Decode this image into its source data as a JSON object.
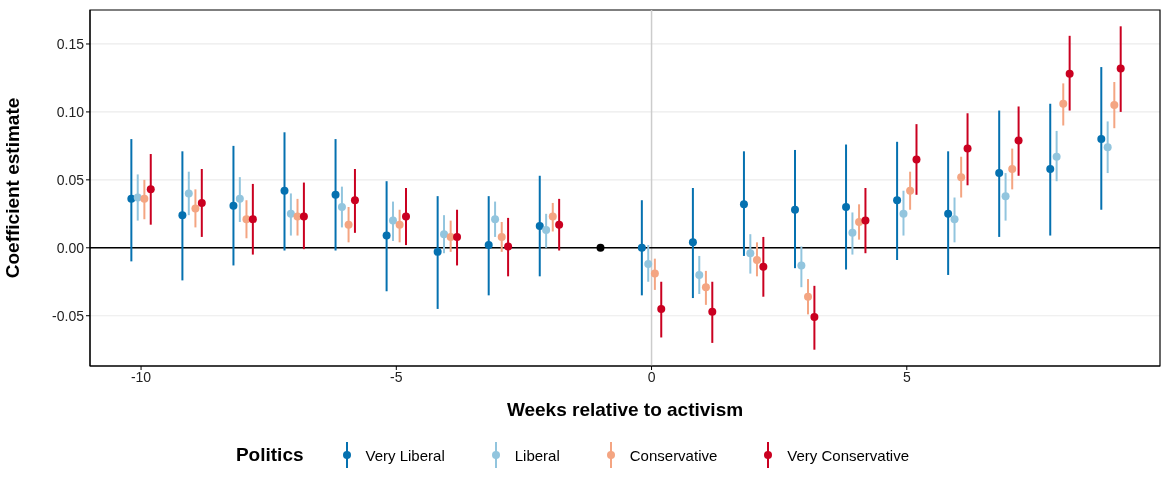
{
  "chart_data": {
    "type": "scatter",
    "xlabel": "Weeks relative to activism",
    "ylabel": "Coefficient estimate",
    "legend_title": "Politics",
    "legend": "bottom",
    "grid": "y",
    "marker": "circle",
    "xlim": [
      -11,
      9.96
    ],
    "xticks": [
      -10,
      -5,
      0,
      5
    ],
    "ylim": [
      -0.087,
      0.175
    ],
    "yticks": [
      {
        "value": -0.05,
        "label": "-0.05"
      },
      {
        "value": 0,
        "label": "0.00"
      },
      {
        "value": 0.05,
        "label": "0.05"
      },
      {
        "value": 0.1,
        "label": "0.10"
      },
      {
        "value": 0.15,
        "label": "0.15"
      }
    ],
    "ref_lines": [
      {
        "axis": "x",
        "value": 0,
        "color": "#cccccc"
      },
      {
        "axis": "y",
        "value": 0,
        "color": "#000000"
      }
    ],
    "series": [
      {
        "name": "Very Liberal",
        "color": "#0571b0",
        "x": [
          -10.19,
          -9.19,
          -8.19,
          -7.19,
          -6.19,
          -5.19,
          -4.19,
          -3.19,
          -2.19,
          -0.19,
          0.81,
          1.81,
          2.81,
          3.81,
          4.81,
          5.81,
          6.81,
          7.81,
          8.81
        ],
        "values": [
          0.036,
          0.024,
          0.031,
          0.042,
          0.039,
          0.009,
          -0.003,
          0.002,
          0.016,
          0.0,
          0.004,
          0.032,
          0.028,
          0.03,
          0.035,
          0.025,
          0.055,
          0.058,
          0.08
        ],
        "errors": [
          [
            -0.01,
            0.08
          ],
          [
            -0.024,
            0.071
          ],
          [
            -0.013,
            0.075
          ],
          [
            -0.002,
            0.085
          ],
          [
            -0.002,
            0.08
          ],
          [
            -0.032,
            0.049
          ],
          [
            -0.045,
            0.038
          ],
          [
            -0.035,
            0.038
          ],
          [
            -0.021,
            0.053
          ],
          [
            -0.035,
            0.035
          ],
          [
            -0.037,
            0.044
          ],
          [
            -0.006,
            0.071
          ],
          [
            -0.015,
            0.072
          ],
          [
            -0.016,
            0.076
          ],
          [
            -0.009,
            0.078
          ],
          [
            -0.02,
            0.071
          ],
          [
            0.008,
            0.101
          ],
          [
            0.009,
            0.106
          ],
          [
            0.028,
            0.133
          ]
        ]
      },
      {
        "name": "Liberal",
        "color": "#92c5de",
        "x": [
          -10.065,
          -9.065,
          -8.065,
          -7.065,
          -6.065,
          -5.065,
          -4.065,
          -3.065,
          -2.065,
          -0.065,
          0.935,
          1.935,
          2.935,
          3.935,
          4.935,
          5.935,
          6.935,
          7.935,
          8.935
        ],
        "values": [
          0.037,
          0.04,
          0.036,
          0.025,
          0.03,
          0.02,
          0.01,
          0.021,
          0.013,
          -0.012,
          -0.02,
          -0.004,
          -0.013,
          0.011,
          0.025,
          0.021,
          0.038,
          0.067,
          0.074
        ],
        "errors": [
          [
            0.02,
            0.054
          ],
          [
            0.024,
            0.056
          ],
          [
            0.019,
            0.052
          ],
          [
            0.009,
            0.04
          ],
          [
            0.015,
            0.045
          ],
          [
            0.005,
            0.034
          ],
          [
            -0.004,
            0.024
          ],
          [
            0.008,
            0.034
          ],
          [
            0.0,
            0.025
          ],
          [
            -0.025,
            0.002
          ],
          [
            -0.034,
            -0.006
          ],
          [
            -0.019,
            0.01
          ],
          [
            -0.029,
            0.001
          ],
          [
            -0.005,
            0.026
          ],
          [
            0.009,
            0.042
          ],
          [
            0.004,
            0.037
          ],
          [
            0.02,
            0.055
          ],
          [
            0.049,
            0.086
          ],
          [
            0.055,
            0.093
          ]
        ]
      },
      {
        "name": "Conservative",
        "color": "#f4a582",
        "x": [
          -9.935,
          -8.935,
          -7.935,
          -6.935,
          -5.935,
          -4.935,
          -3.935,
          -2.935,
          -1.935,
          0.065,
          1.065,
          2.065,
          3.065,
          4.065,
          5.065,
          6.065,
          7.065,
          8.065,
          9.065
        ],
        "values": [
          0.036,
          0.029,
          0.021,
          0.023,
          0.017,
          0.017,
          0.008,
          0.008,
          0.023,
          -0.019,
          -0.029,
          -0.009,
          -0.036,
          0.019,
          0.042,
          0.052,
          0.058,
          0.106,
          0.105
        ],
        "errors": [
          [
            0.021,
            0.05
          ],
          [
            0.015,
            0.043
          ],
          [
            0.007,
            0.035
          ],
          [
            0.009,
            0.036
          ],
          [
            0.004,
            0.03
          ],
          [
            0.004,
            0.028
          ],
          [
            -0.003,
            0.02
          ],
          [
            -0.003,
            0.019
          ],
          [
            0.012,
            0.033
          ],
          [
            -0.031,
            -0.008
          ],
          [
            -0.042,
            -0.017
          ],
          [
            -0.021,
            0.004
          ],
          [
            -0.049,
            -0.023
          ],
          [
            0.006,
            0.032
          ],
          [
            0.028,
            0.056
          ],
          [
            0.037,
            0.067
          ],
          [
            0.043,
            0.073
          ],
          [
            0.09,
            0.121
          ],
          [
            0.088,
            0.122
          ]
        ]
      },
      {
        "name": "Very Conservative",
        "color": "#ca0020",
        "x": [
          -9.81,
          -8.81,
          -7.81,
          -6.81,
          -5.81,
          -4.81,
          -3.81,
          -2.81,
          -1.81,
          0.19,
          1.19,
          2.19,
          3.19,
          4.19,
          5.19,
          6.19,
          7.19,
          8.19,
          9.19
        ],
        "values": [
          0.043,
          0.033,
          0.021,
          0.023,
          0.035,
          0.023,
          0.008,
          0.001,
          0.017,
          -0.045,
          -0.047,
          -0.014,
          -0.051,
          0.02,
          0.065,
          0.073,
          0.079,
          0.128,
          0.132
        ],
        "errors": [
          [
            0.017,
            0.069
          ],
          [
            0.008,
            0.058
          ],
          [
            -0.005,
            0.047
          ],
          [
            -0.001,
            0.048
          ],
          [
            0.011,
            0.058
          ],
          [
            0.002,
            0.044
          ],
          [
            -0.013,
            0.028
          ],
          [
            -0.021,
            0.022
          ],
          [
            -0.002,
            0.036
          ],
          [
            -0.066,
            -0.025
          ],
          [
            -0.07,
            -0.025
          ],
          [
            -0.036,
            0.008
          ],
          [
            -0.075,
            -0.028
          ],
          [
            -0.004,
            0.044
          ],
          [
            0.039,
            0.091
          ],
          [
            0.046,
            0.099
          ],
          [
            0.053,
            0.104
          ],
          [
            0.101,
            0.156
          ],
          [
            0.1,
            0.163
          ]
        ]
      },
      {
        "color": "#000000",
        "x": [
          -1
        ],
        "values": [
          0
        ]
      }
    ]
  }
}
